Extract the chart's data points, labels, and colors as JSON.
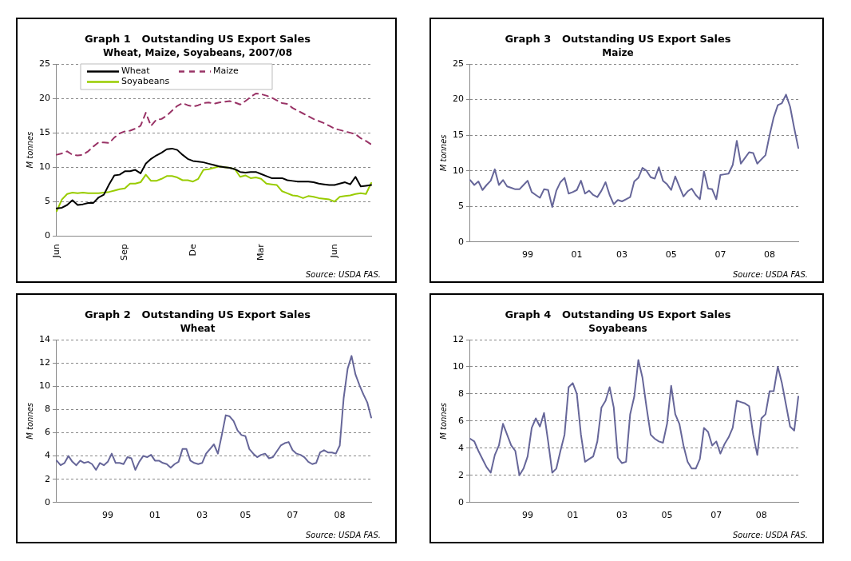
{
  "chart_data": [
    {
      "type": "line",
      "title": "Graph 1   Outstanding US Export Sales",
      "subtitle": "Wheat, Maize, Soyabeans, 2007/08",
      "ylabel": "M tonnes",
      "annotations": [
        "Source: USDA FAS."
      ],
      "categories": [
        "Jun",
        null,
        null,
        null,
        null,
        null,
        null,
        null,
        null,
        null,
        null,
        null,
        null,
        "Sep",
        null,
        null,
        null,
        null,
        null,
        null,
        null,
        null,
        null,
        null,
        null,
        null,
        "De",
        null,
        null,
        null,
        null,
        null,
        null,
        null,
        null,
        null,
        null,
        null,
        null,
        "Mar",
        null,
        null,
        null,
        null,
        null,
        null,
        null,
        null,
        null,
        null,
        null,
        null,
        null,
        "Jun",
        null,
        null,
        null,
        null,
        null,
        null,
        null
      ],
      "series": [
        {
          "name": "Wheat",
          "color": "#000000",
          "values": [
            4.0,
            4.1,
            4.5,
            5.2,
            4.5,
            4.6,
            4.8,
            4.8,
            5.6,
            6.0,
            7.5,
            8.8,
            8.9,
            9.4,
            9.4,
            9.6,
            9.1,
            10.5,
            11.2,
            11.7,
            12.1,
            12.6,
            12.7,
            12.5,
            11.8,
            11.2,
            10.9,
            10.8,
            10.7,
            10.5,
            10.3,
            10.1,
            10.0,
            9.9,
            9.7,
            9.3,
            9.2,
            9.3,
            9.3,
            9.0,
            8.7,
            8.4,
            8.4,
            8.4,
            8.1,
            8.0,
            7.9,
            7.9,
            7.9,
            7.8,
            7.6,
            7.5,
            7.4,
            7.4,
            7.6,
            7.8,
            7.5,
            8.6,
            7.2,
            7.3,
            7.4
          ]
        },
        {
          "name": "Maize",
          "color": "#993366",
          "line_style": "dashed",
          "values": [
            11.8,
            12.0,
            12.3,
            11.8,
            11.7,
            11.8,
            12.3,
            13.0,
            13.6,
            13.6,
            13.5,
            14.3,
            14.9,
            15.2,
            15.3,
            15.6,
            16.0,
            17.9,
            16.0,
            16.9,
            17.0,
            17.5,
            18.2,
            18.9,
            19.3,
            19.0,
            18.8,
            19.0,
            19.3,
            19.4,
            19.2,
            19.4,
            19.5,
            19.6,
            19.4,
            19.1,
            19.6,
            20.2,
            20.7,
            20.6,
            20.4,
            20.1,
            19.7,
            19.3,
            19.2,
            18.6,
            18.2,
            17.8,
            17.4,
            17.0,
            16.7,
            16.4,
            16.0,
            15.6,
            15.4,
            15.2,
            15.0,
            14.8,
            14.2,
            13.8,
            13.3
          ]
        },
        {
          "name": "Soyabeans",
          "color": "#99cc00",
          "values": [
            3.6,
            5.3,
            6.1,
            6.3,
            6.2,
            6.3,
            6.2,
            6.2,
            6.2,
            6.3,
            6.4,
            6.6,
            6.8,
            6.9,
            7.6,
            7.6,
            7.8,
            8.9,
            8.0,
            8.0,
            8.3,
            8.7,
            8.7,
            8.5,
            8.1,
            8.1,
            7.9,
            8.3,
            9.6,
            9.7,
            9.9,
            10.1,
            10.0,
            9.9,
            9.7,
            8.6,
            8.8,
            8.4,
            8.5,
            8.3,
            7.6,
            7.5,
            7.4,
            6.5,
            6.2,
            5.9,
            5.8,
            5.5,
            5.8,
            5.7,
            5.5,
            5.4,
            5.3,
            5.0,
            5.7,
            5.8,
            5.9,
            6.1,
            6.2,
            6.1,
            7.7
          ]
        }
      ],
      "ylim": [
        0,
        25
      ],
      "yticks": [
        0,
        5,
        10,
        15,
        20,
        25
      ],
      "grid": "y",
      "legend": "top left",
      "marker": "none"
    },
    {
      "type": "line",
      "title": "Graph 3   Outstanding US Export Sales",
      "subtitle": "Maize",
      "ylabel": "M tonnes",
      "annotations": [
        "Source: USDA FAS."
      ],
      "categories": [
        null,
        null,
        null,
        null,
        null,
        null,
        null,
        null,
        null,
        null,
        null,
        null,
        null,
        null,
        "99",
        null,
        null,
        null,
        null,
        null,
        null,
        null,
        null,
        null,
        null,
        null,
        "01",
        null,
        null,
        null,
        null,
        null,
        null,
        null,
        null,
        null,
        null,
        "03",
        null,
        null,
        null,
        null,
        null,
        null,
        null,
        null,
        null,
        null,
        null,
        "05",
        null,
        null,
        null,
        null,
        null,
        null,
        null,
        null,
        null,
        null,
        null,
        "07",
        null,
        null,
        null,
        null,
        null,
        null,
        null,
        null,
        null,
        null,
        null,
        "08",
        null,
        null,
        null,
        null,
        null,
        null,
        null
      ],
      "series": [
        {
          "color": "#666699",
          "values": [
            8.7,
            8.0,
            8.5,
            7.3,
            8.0,
            8.6,
            10.2,
            8.0,
            8.7,
            7.8,
            7.6,
            7.4,
            7.4,
            8.0,
            8.6,
            7.0,
            6.6,
            6.2,
            7.4,
            7.3,
            4.9,
            7.2,
            8.4,
            9.0,
            6.8,
            7.0,
            7.3,
            8.6,
            6.8,
            7.2,
            6.6,
            6.3,
            7.2,
            8.4,
            6.6,
            5.3,
            5.9,
            5.7,
            6.0,
            6.3,
            8.5,
            9.0,
            10.4,
            10.0,
            9.1,
            8.9,
            10.5,
            8.6,
            8.1,
            7.3,
            9.2,
            7.8,
            6.4,
            7.1,
            7.5,
            6.6,
            6.0,
            9.9,
            7.5,
            7.4,
            6.0,
            9.4,
            9.5,
            9.6,
            10.8,
            14.2,
            11.0,
            11.8,
            12.6,
            12.5,
            11.0,
            11.6,
            12.2,
            15.0,
            17.5,
            19.2,
            19.5,
            20.7,
            19.0,
            16.0,
            13.2
          ]
        }
      ],
      "ylim": [
        0,
        25
      ],
      "yticks": [
        0,
        5,
        10,
        15,
        20,
        25
      ],
      "grid": "y",
      "marker": "none"
    },
    {
      "type": "line",
      "title": "Graph 2   Outstanding US Export Sales",
      "subtitle": "Wheat",
      "ylabel": "M tonnes",
      "annotations": [
        "Source: USDA FAS."
      ],
      "categories": [
        null,
        null,
        null,
        null,
        null,
        null,
        null,
        null,
        null,
        null,
        null,
        null,
        null,
        "99",
        null,
        null,
        null,
        null,
        null,
        null,
        null,
        null,
        null,
        null,
        null,
        "01",
        null,
        null,
        null,
        null,
        null,
        null,
        null,
        null,
        null,
        null,
        null,
        "03",
        null,
        null,
        null,
        null,
        null,
        null,
        null,
        null,
        null,
        null,
        "05",
        null,
        null,
        null,
        null,
        null,
        null,
        null,
        null,
        null,
        null,
        null,
        "07",
        null,
        null,
        null,
        null,
        null,
        null,
        null,
        null,
        null,
        null,
        null,
        "08",
        null,
        null,
        null,
        null,
        null,
        null,
        null,
        null
      ],
      "series": [
        {
          "color": "#666699",
          "values": [
            3.6,
            3.2,
            3.4,
            4.0,
            3.5,
            3.2,
            3.6,
            3.4,
            3.5,
            3.3,
            2.8,
            3.4,
            3.2,
            3.5,
            4.2,
            3.4,
            3.4,
            3.3,
            3.9,
            3.8,
            2.8,
            3.5,
            4.0,
            3.9,
            4.1,
            3.6,
            3.6,
            3.4,
            3.3,
            3.0,
            3.3,
            3.5,
            4.6,
            4.6,
            3.6,
            3.4,
            3.3,
            3.4,
            4.2,
            4.6,
            5.0,
            4.2,
            5.8,
            7.5,
            7.4,
            7.0,
            6.2,
            5.8,
            5.7,
            4.6,
            4.2,
            3.9,
            4.1,
            4.2,
            3.8,
            3.9,
            4.4,
            4.9,
            5.1,
            5.2,
            4.5,
            4.2,
            4.1,
            3.9,
            3.5,
            3.3,
            3.4,
            4.3,
            4.5,
            4.3,
            4.3,
            4.2,
            4.9,
            9.0,
            11.5,
            12.6,
            11.0,
            10.1,
            9.3,
            8.6,
            7.3
          ]
        }
      ],
      "ylim": [
        0,
        14
      ],
      "yticks": [
        0,
        2,
        4,
        6,
        8,
        10,
        12,
        14
      ],
      "grid": "y",
      "marker": "none"
    },
    {
      "type": "line",
      "title": "Graph 4   Outstanding US Export Sales",
      "subtitle": "Soyabeans",
      "ylabel": "M tonnes",
      "annotations": [
        "Source: USDA FAS."
      ],
      "categories": [
        null,
        null,
        null,
        null,
        null,
        null,
        null,
        null,
        null,
        null,
        null,
        null,
        null,
        null,
        "99",
        null,
        null,
        null,
        null,
        null,
        null,
        null,
        null,
        null,
        null,
        "01",
        null,
        null,
        null,
        null,
        null,
        null,
        null,
        null,
        null,
        null,
        null,
        "03",
        null,
        null,
        null,
        null,
        null,
        null,
        null,
        null,
        null,
        null,
        "05",
        null,
        null,
        null,
        null,
        null,
        null,
        null,
        null,
        null,
        null,
        null,
        "07",
        null,
        null,
        null,
        null,
        null,
        null,
        null,
        null,
        null,
        null,
        "08",
        null,
        null,
        null,
        null,
        null,
        null,
        null,
        null,
        null
      ],
      "series": [
        {
          "color": "#666699",
          "values": [
            4.7,
            4.5,
            3.8,
            3.2,
            2.6,
            2.2,
            3.5,
            4.2,
            5.8,
            5.0,
            4.2,
            3.8,
            2.0,
            2.5,
            3.4,
            5.5,
            6.2,
            5.6,
            6.6,
            4.5,
            2.2,
            2.5,
            3.8,
            5.0,
            8.5,
            8.8,
            8.0,
            5.0,
            3.0,
            3.2,
            3.4,
            4.5,
            7.0,
            7.5,
            8.5,
            7.0,
            3.3,
            2.9,
            3.0,
            6.5,
            7.8,
            10.5,
            9.2,
            7.0,
            5.0,
            4.7,
            4.5,
            4.4,
            5.8,
            8.6,
            6.5,
            5.8,
            4.2,
            3.0,
            2.5,
            2.5,
            3.2,
            5.5,
            5.2,
            4.2,
            4.5,
            3.6,
            4.3,
            4.8,
            5.5,
            7.5,
            7.4,
            7.3,
            7.1,
            5.0,
            3.5,
            6.2,
            6.5,
            8.2,
            8.2,
            10.0,
            8.8,
            7.2,
            5.6,
            5.3,
            7.8
          ]
        }
      ],
      "ylim": [
        0,
        12
      ],
      "yticks": [
        0,
        2,
        4,
        6,
        8,
        10,
        12
      ],
      "grid": "y",
      "marker": "none"
    }
  ]
}
